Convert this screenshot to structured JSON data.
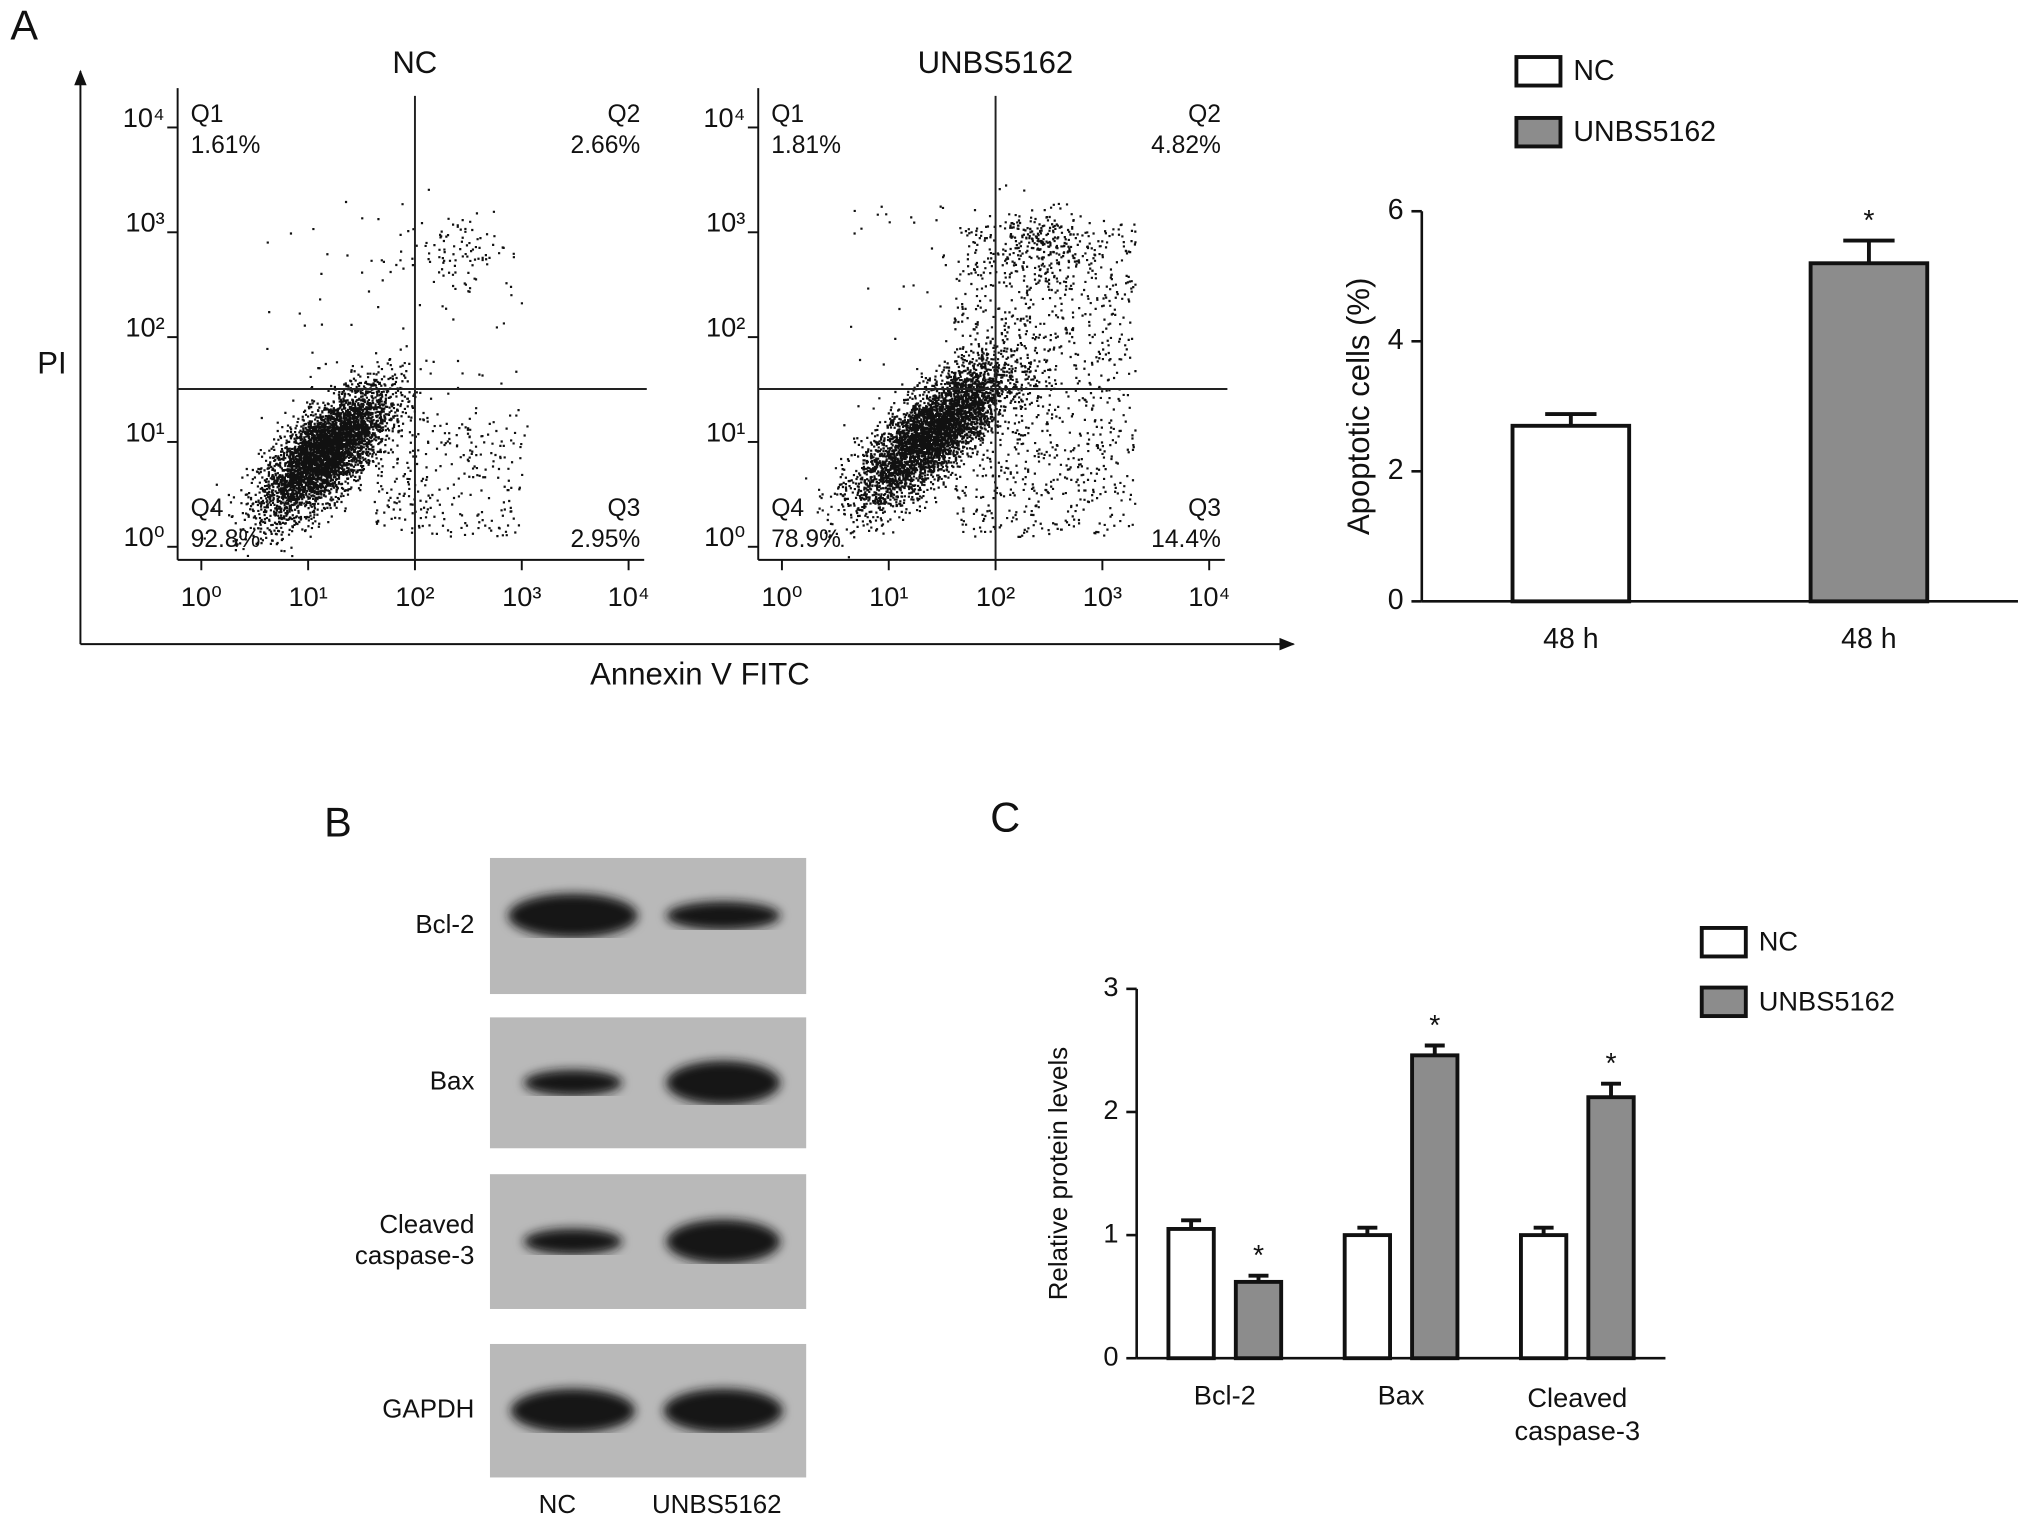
{
  "panel_labels": {
    "a": "A",
    "b": "B",
    "c": "C"
  },
  "flow_axes": {
    "x_label": "Annexin V FITC",
    "y_label": "PI"
  },
  "chart_data": [
    {
      "type": "scatter",
      "title": "NC",
      "xscale": "log",
      "yscale": "log",
      "xlim": [
        0.6,
        14000
      ],
      "ylim": [
        0.75,
        20000
      ],
      "xticks": [
        {
          "value": 1,
          "label": "10⁰"
        },
        {
          "value": 10,
          "label": "10¹"
        },
        {
          "value": 100,
          "label": "10²"
        },
        {
          "value": 1000,
          "label": "10³"
        },
        {
          "value": 10000,
          "label": "10⁴"
        }
      ],
      "yticks": [
        {
          "value": 1,
          "label": "10⁰"
        },
        {
          "value": 10,
          "label": "10¹"
        },
        {
          "value": 100,
          "label": "10²"
        },
        {
          "value": 1000,
          "label": "10³"
        },
        {
          "value": 10000,
          "label": "10⁴"
        }
      ],
      "gate": {
        "x": 100,
        "y": 32
      },
      "quadrants": {
        "names": [
          "Q1",
          "Q2",
          "Q3",
          "Q4"
        ],
        "values": [
          1.61,
          2.66,
          2.95,
          92.8
        ],
        "value_labels": [
          "1.61%",
          "2.66%",
          "2.95%",
          "92.8%"
        ]
      }
    },
    {
      "type": "scatter",
      "title": "UNBS5162",
      "xscale": "log",
      "yscale": "log",
      "xlim": [
        0.6,
        14000
      ],
      "ylim": [
        0.75,
        20000
      ],
      "xticks": [
        {
          "value": 1,
          "label": "10⁰"
        },
        {
          "value": 10,
          "label": "10¹"
        },
        {
          "value": 100,
          "label": "10²"
        },
        {
          "value": 1000,
          "label": "10³"
        },
        {
          "value": 10000,
          "label": "10⁴"
        }
      ],
      "yticks": [
        {
          "value": 1,
          "label": "10⁰"
        },
        {
          "value": 10,
          "label": "10¹"
        },
        {
          "value": 100,
          "label": "10²"
        },
        {
          "value": 1000,
          "label": "10³"
        },
        {
          "value": 10000,
          "label": "10⁴"
        }
      ],
      "gate": {
        "x": 100,
        "y": 32
      },
      "quadrants": {
        "names": [
          "Q1",
          "Q2",
          "Q3",
          "Q4"
        ],
        "values": [
          1.81,
          4.82,
          14.4,
          78.9
        ],
        "value_labels": [
          "1.81%",
          "4.82%",
          "14.4%",
          "78.9%"
        ]
      }
    },
    {
      "type": "bar",
      "ylabel": "Apoptotic cells (%)",
      "categories": [
        "48 h",
        "48 h"
      ],
      "ylim": [
        0,
        6
      ],
      "yticks": [
        0,
        2,
        4,
        6
      ],
      "series": [
        {
          "name": "NC",
          "color": "#ffffff",
          "values": [
            2.7,
            null
          ],
          "errors": [
            0.18,
            null
          ]
        },
        {
          "name": "UNBS5162",
          "color": "#8c8c8c",
          "values": [
            null,
            5.2
          ],
          "errors": [
            null,
            0.35
          ],
          "annotations": [
            null,
            "*"
          ]
        }
      ]
    },
    {
      "type": "bar",
      "ylabel": "Relative protein levels",
      "categories": [
        "Bcl-2",
        "Bax",
        "Cleaved\ncaspase-3"
      ],
      "ylim": [
        0,
        3
      ],
      "yticks": [
        0,
        1,
        2,
        3
      ],
      "series": [
        {
          "name": "NC",
          "color": "#ffffff",
          "values": [
            1.05,
            1.0,
            1.0
          ],
          "errors": [
            0.07,
            0.06,
            0.06
          ]
        },
        {
          "name": "UNBS5162",
          "color": "#8c8c8c",
          "values": [
            0.62,
            2.46,
            2.12
          ],
          "errors": [
            0.05,
            0.08,
            0.11
          ],
          "annotations": [
            "*",
            "*",
            "*"
          ]
        }
      ]
    }
  ],
  "western_blot": {
    "rows": [
      "Bcl-2",
      "Bax",
      "Cleaved\ncaspase-3",
      "GAPDH"
    ],
    "lanes": [
      "NC",
      "UNBS5162"
    ]
  }
}
